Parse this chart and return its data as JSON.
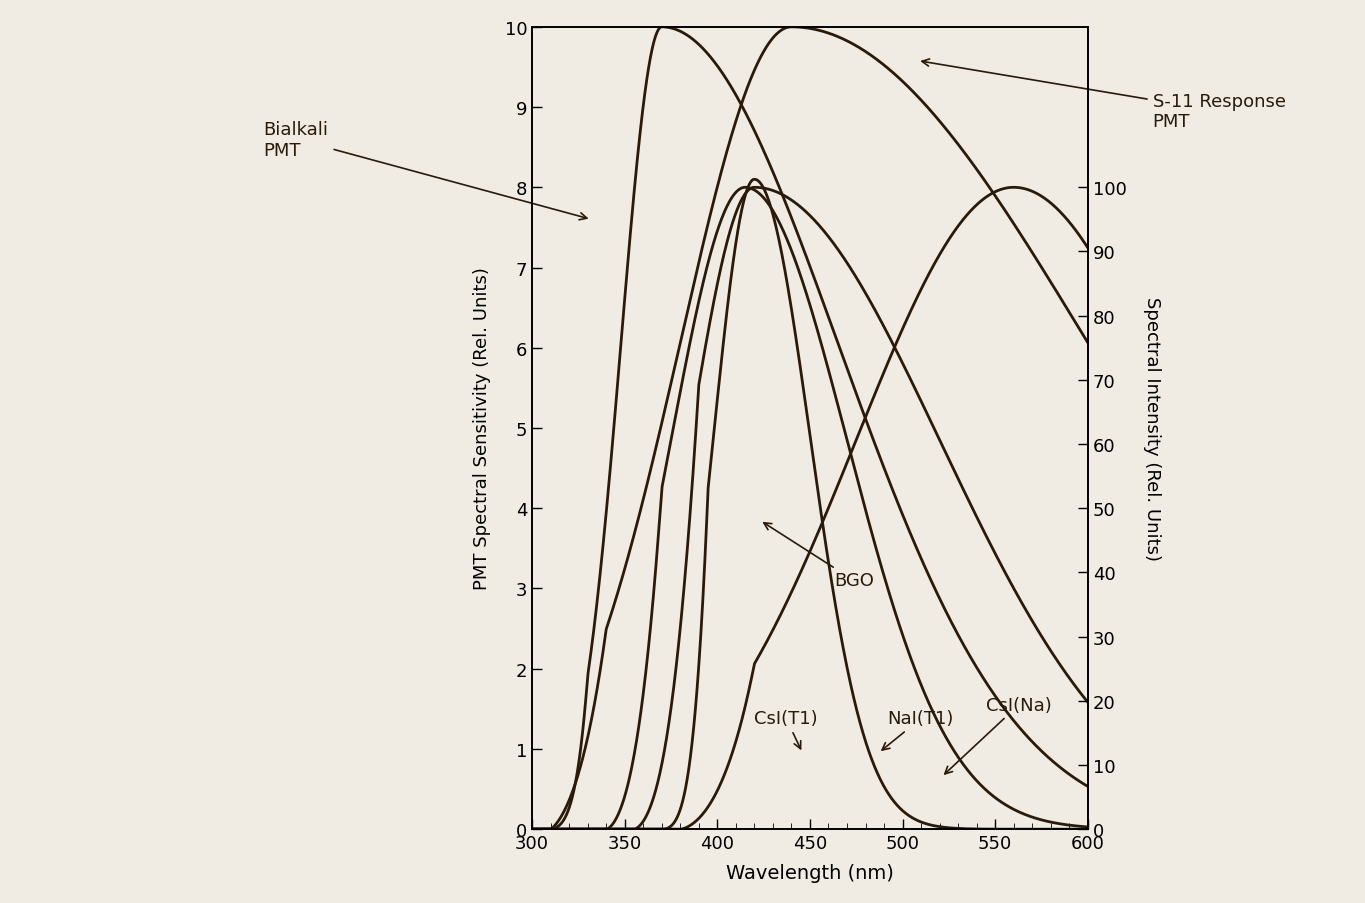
{
  "xlabel": "Wavelength (nm)",
  "ylabel_left": "PMT Spectral Sensitivity (Rel. Units)",
  "ylabel_right": "Spectral Intensity (Rel. Units)",
  "xlim": [
    300,
    600
  ],
  "ylim_left": [
    0,
    10
  ],
  "ylim_right": [
    0,
    125
  ],
  "xticks": [
    300,
    350,
    400,
    450,
    500,
    550,
    600
  ],
  "yticks_left": [
    0,
    1,
    2,
    3,
    4,
    5,
    6,
    7,
    8,
    9,
    10
  ],
  "yticks_right": [
    0,
    10,
    20,
    30,
    40,
    50,
    60,
    70,
    80,
    90,
    100
  ],
  "background_color": "#f0ece4",
  "line_color": "#2a1a0a",
  "lw": 2.0
}
